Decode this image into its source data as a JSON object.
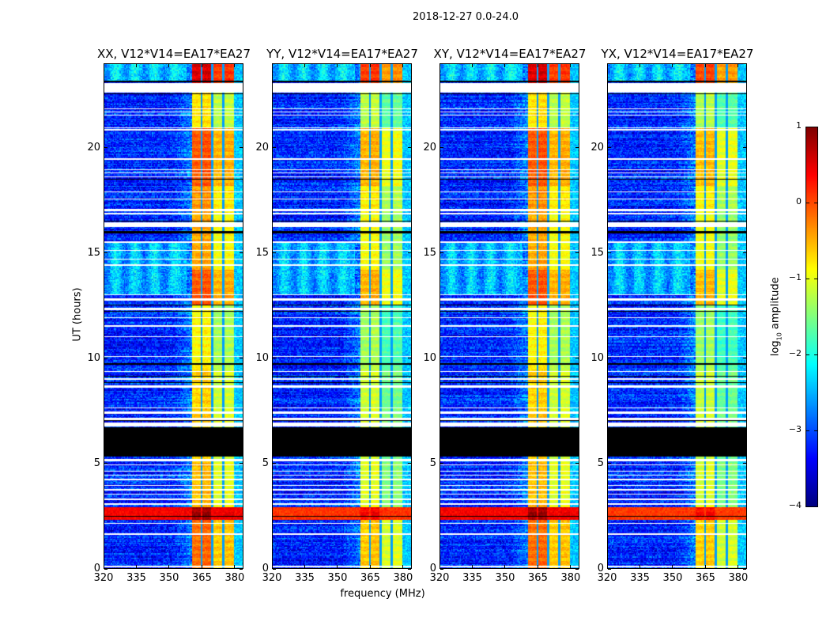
{
  "suptitle": "2018-12-27 0.0-24.0",
  "chart_data": {
    "type": "heatmap",
    "xlabel": "frequency (MHz)",
    "ylabel": "UT (hours)",
    "xlim": [
      320,
      384
    ],
    "ylim": [
      0,
      24
    ],
    "xticks": [
      320,
      335,
      350,
      365,
      380
    ],
    "yticks": [
      0,
      5,
      10,
      15,
      20
    ],
    "panels": [
      {
        "title": "XX, V12*V14=EA17*EA27",
        "band_offset": 0.0
      },
      {
        "title": "YY, V12*V14=EA17*EA27",
        "band_offset": -0.45
      },
      {
        "title": "XY, V12*V14=EA17*EA27",
        "band_offset": 0.0
      },
      {
        "title": "YX, V12*V14=EA17*EA27",
        "band_offset": -0.5
      }
    ],
    "colorbar": {
      "label_prefix": "log",
      "label_sub": "10",
      "label_suffix": " amplitude",
      "range": [
        -4,
        1
      ],
      "ticks": [
        -4,
        -3,
        -2,
        -1,
        0,
        1
      ],
      "tick_labels": [
        "−4",
        "−3",
        "−2",
        "−1",
        "0",
        "1"
      ],
      "colormap": "jet"
    },
    "background_level": -3.2,
    "rfi_band_mhz": [
      360.5,
      380
    ],
    "rfi_band_gaps_mhz": [
      365,
      370,
      375
    ],
    "rfi_band_levels": [
      [
        0,
        2.3,
        -0.2
      ],
      [
        2.3,
        2.9,
        0.8
      ],
      [
        2.9,
        5.2,
        -0.6
      ],
      [
        6.7,
        9.5,
        -0.7
      ],
      [
        9.5,
        12.5,
        -0.9
      ],
      [
        12.5,
        14.2,
        -0.1
      ],
      [
        14.2,
        17,
        -0.5
      ],
      [
        17,
        18.2,
        -0.4
      ],
      [
        18.2,
        21,
        -0.1
      ],
      [
        21,
        22.6,
        -0.8
      ],
      [
        23.1,
        24,
        0.5
      ]
    ],
    "broadband_rfi_hours": [
      [
        2.3,
        2.9,
        0.4
      ]
    ],
    "low_freq_enhanced_hours": [
      [
        13,
        15.5,
        -2.5
      ],
      [
        23.2,
        24,
        -2.4
      ]
    ],
    "flagged_white_hours": [
      [
        22.65,
        23.1
      ],
      [
        21.85,
        21.9
      ],
      [
        21.7,
        21.75
      ],
      [
        21.55,
        21.6
      ],
      [
        20.95,
        21.0
      ],
      [
        20.85,
        20.9
      ],
      [
        19.45,
        19.5
      ],
      [
        18.95,
        19.0
      ],
      [
        18.8,
        18.85
      ],
      [
        18.6,
        18.65
      ],
      [
        17.9,
        17.95
      ],
      [
        17.55,
        17.6
      ],
      [
        17.0,
        17.1
      ],
      [
        16.85,
        16.9
      ],
      [
        16.25,
        16.45
      ],
      [
        15.5,
        15.55
      ],
      [
        15.1,
        15.15
      ],
      [
        14.7,
        14.75
      ],
      [
        14.4,
        14.45
      ],
      [
        13.0,
        13.05
      ],
      [
        12.75,
        12.85
      ],
      [
        12.3,
        12.4
      ],
      [
        11.9,
        11.95
      ],
      [
        11.5,
        11.55
      ],
      [
        11.0,
        11.05
      ],
      [
        10.05,
        10.1
      ],
      [
        9.35,
        9.4
      ],
      [
        8.95,
        9.05
      ],
      [
        8.6,
        8.7
      ],
      [
        7.6,
        7.65
      ],
      [
        7.35,
        7.45
      ],
      [
        7.05,
        7.15
      ],
      [
        6.75,
        6.95
      ],
      [
        5.1,
        5.2
      ],
      [
        4.9,
        4.95
      ],
      [
        4.6,
        4.65
      ],
      [
        4.4,
        4.45
      ],
      [
        4.2,
        4.25
      ],
      [
        3.9,
        3.95
      ],
      [
        3.7,
        3.75
      ],
      [
        3.5,
        3.55
      ],
      [
        3.25,
        3.3
      ],
      [
        3.0,
        3.1
      ],
      [
        2.1,
        2.15
      ],
      [
        1.6,
        1.65
      ],
      [
        0.05,
        0.1
      ]
    ],
    "flagged_black_hours": [
      [
        5.3,
        6.7
      ],
      [
        23.15,
        23.2
      ],
      [
        22.55,
        22.6
      ],
      [
        18.5,
        18.55
      ],
      [
        16.5,
        16.55
      ],
      [
        15.95,
        16.05
      ],
      [
        12.5,
        12.55
      ],
      [
        12.2,
        12.25
      ],
      [
        9.7,
        9.75
      ],
      [
        9.1,
        9.15
      ],
      [
        8.8,
        8.85
      ],
      [
        7.0,
        7.03
      ],
      [
        2.45,
        2.5
      ]
    ]
  }
}
